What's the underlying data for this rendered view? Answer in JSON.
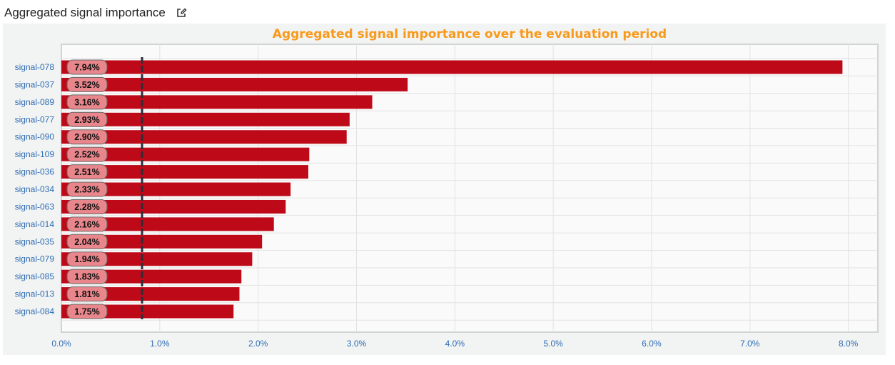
{
  "header": {
    "title": "Aggregated signal importance"
  },
  "colors": {
    "title": "#f89a1c",
    "bar": "#be0a18",
    "pill_fill": "#e8868c",
    "axis_label": "#2f6db5",
    "grid": "#e3e3e3",
    "threshold": "#2a2e3c"
  },
  "icons": {
    "edit": "edit-icon"
  },
  "chart_data": {
    "type": "bar",
    "orientation": "horizontal",
    "title": "Aggregated signal importance over the evaluation period",
    "xlabel": "",
    "ylabel": "",
    "categories": [
      "signal-078",
      "signal-037",
      "signal-089",
      "signal-077",
      "signal-090",
      "signal-109",
      "signal-036",
      "signal-034",
      "signal-063",
      "signal-014",
      "signal-035",
      "signal-079",
      "signal-085",
      "signal-013",
      "signal-084"
    ],
    "values": [
      7.94,
      3.52,
      3.16,
      2.93,
      2.9,
      2.52,
      2.51,
      2.33,
      2.28,
      2.16,
      2.04,
      1.94,
      1.83,
      1.81,
      1.75
    ],
    "data_labels": [
      "7.94%",
      "3.52%",
      "3.16%",
      "2.93%",
      "2.90%",
      "2.52%",
      "2.51%",
      "2.33%",
      "2.28%",
      "2.16%",
      "2.04%",
      "1.94%",
      "1.83%",
      "1.81%",
      "1.75%"
    ],
    "xlim": [
      0,
      8.3
    ],
    "x_ticks": [
      0,
      1,
      2,
      3,
      4,
      5,
      6,
      7,
      8
    ],
    "x_tick_labels": [
      "0.0%",
      "1.0%",
      "2.0%",
      "3.0%",
      "4.0%",
      "5.0%",
      "6.0%",
      "7.0%",
      "8.0%"
    ],
    "threshold": 0.82,
    "grid": true,
    "legend": "none"
  }
}
